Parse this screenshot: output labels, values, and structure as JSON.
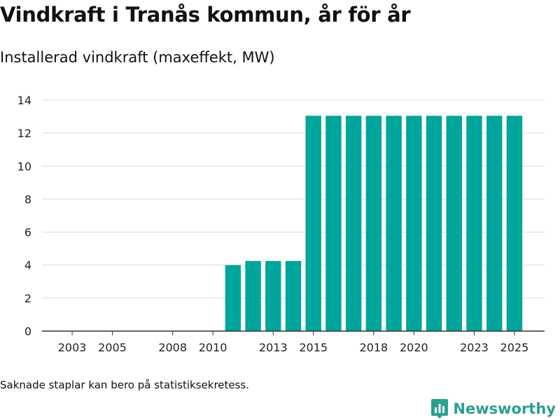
{
  "title": "Vindkraft i Tranås kommun, år för år",
  "subtitle": "Installerad vindkraft (maxeffekt, MW)",
  "footnote": "Saknade staplar kan bero på statistiksekretess.",
  "brand": {
    "name": "Newsworthy",
    "icon": "newsworthy-logo-icon"
  },
  "colors": {
    "bar": "#00a59c",
    "grid": "#dcdcdc",
    "axis": "#333333",
    "brand": "#2d9f8f"
  },
  "chart_data": {
    "type": "bar",
    "title": "Vindkraft i Tranås kommun, år för år",
    "ylabel": "Installerad vindkraft (maxeffekt, MW)",
    "xlabel": "",
    "categories": [
      2002,
      2003,
      2004,
      2005,
      2006,
      2007,
      2008,
      2009,
      2010,
      2011,
      2012,
      2013,
      2014,
      2015,
      2016,
      2017,
      2018,
      2019,
      2020,
      2021,
      2022,
      2023,
      2024,
      2025
    ],
    "values": [
      null,
      null,
      null,
      null,
      null,
      null,
      null,
      null,
      null,
      4.0,
      4.25,
      4.25,
      4.25,
      13.05,
      13.05,
      13.05,
      13.05,
      13.05,
      13.05,
      13.05,
      13.05,
      13.05,
      13.05,
      13.05
    ],
    "xlim": [
      2001.5,
      2026.5
    ],
    "xticks": [
      2003,
      2005,
      2008,
      2010,
      2013,
      2015,
      2018,
      2020,
      2023,
      2025
    ],
    "ylim": [
      0,
      14
    ],
    "yticks": [
      0,
      2,
      4,
      6,
      8,
      10,
      12,
      14
    ],
    "grid": true,
    "legend": "none"
  }
}
